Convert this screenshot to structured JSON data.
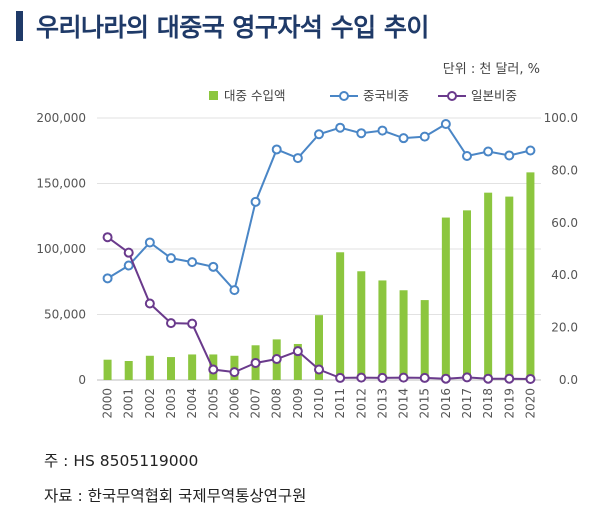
{
  "title": "우리나라의 대중국 영구자석 수입 추이",
  "unit": "단위 :  천 달러, %",
  "note": "주 : HS 8505119000",
  "source": "자료 : 한국무역협회 국제무역통상연구원",
  "colors": {
    "title": "#1f3a68",
    "bar": "#8cc63f",
    "china_line": "#4a86c6",
    "japan_line": "#6a3a8c"
  },
  "chart_data": {
    "type": "bar",
    "categories": [
      "2000",
      "2001",
      "2002",
      "2003",
      "2004",
      "2005",
      "2006",
      "2007",
      "2008",
      "2009",
      "2010",
      "2011",
      "2012",
      "2013",
      "2014",
      "2015",
      "2016",
      "2017",
      "2018",
      "2019",
      "2020"
    ],
    "series": [
      {
        "name": "대중 수입액",
        "type": "bar",
        "axis": "left",
        "values": [
          15500,
          14500,
          18500,
          17500,
          19500,
          19500,
          18500,
          26500,
          31000,
          27500,
          49500,
          97500,
          83000,
          76000,
          68500,
          61000,
          124000,
          129500,
          143000,
          140000,
          158500
        ]
      },
      {
        "name": "중국비중",
        "type": "line",
        "axis": "right",
        "values": [
          38.8,
          43.7,
          52.5,
          46.5,
          45,
          43.2,
          34.3,
          68,
          88,
          84.7,
          93.8,
          96.3,
          94.2,
          95.2,
          92.3,
          92.9,
          97.7,
          85.5,
          87.2,
          85.7,
          87.6
        ]
      },
      {
        "name": "일본비중",
        "type": "line",
        "axis": "right",
        "values": [
          54.5,
          48.6,
          29.2,
          21.7,
          21.5,
          4,
          3,
          6.5,
          8,
          11,
          4,
          0.8,
          0.9,
          0.8,
          0.9,
          0.8,
          0.5,
          1,
          0.5,
          0.5,
          0.4
        ]
      }
    ],
    "y_left": {
      "min": 0,
      "max": 200000,
      "ticks": [
        "0",
        "50,000",
        "100,000",
        "150,000",
        "200,000"
      ]
    },
    "y_right": {
      "min": 0,
      "max": 100,
      "ticks": [
        "0.0",
        "20.0",
        "40.0",
        "60.0",
        "80.0",
        "100.0"
      ]
    },
    "grid": true,
    "legend_position": "top-right"
  }
}
